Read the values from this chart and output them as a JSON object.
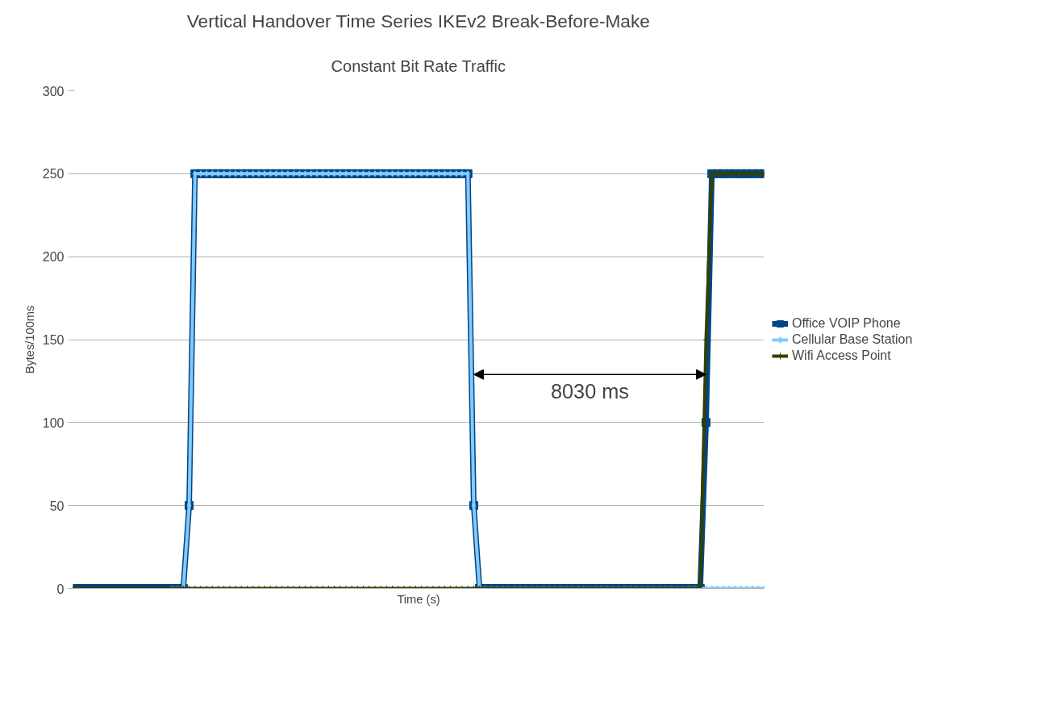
{
  "chart_data": {
    "type": "line",
    "title": "Vertical Handover Time Series IKEv2 Break-Before-Make",
    "subtitle": "Constant Bit Rate Traffic",
    "xlabel": "Time (s)",
    "ylabel": "Bytes/100ms",
    "categories": [
      null,
      null,
      null,
      null,
      null,
      null,
      null,
      null,
      null,
      null,
      null,
      null,
      null,
      null,
      null,
      null,
      null,
      null,
      null,
      null,
      null,
      null,
      null,
      null,
      null,
      null,
      null,
      null,
      null,
      null,
      null,
      null,
      null,
      null,
      null,
      null,
      null,
      null,
      null,
      null,
      null,
      null,
      null,
      null,
      null,
      null,
      null,
      null,
      null,
      null,
      null,
      null,
      null,
      null,
      null,
      null,
      null,
      null,
      null,
      null,
      null,
      null,
      null,
      null,
      null,
      null,
      null,
      null,
      null,
      null,
      null,
      null,
      null,
      null,
      null,
      null,
      null,
      null,
      null,
      null,
      null,
      null,
      null,
      null,
      null,
      null,
      null,
      null,
      null,
      null,
      null,
      null,
      null,
      null,
      null,
      null,
      null,
      null,
      null,
      null,
      null,
      null,
      null,
      null,
      null,
      null,
      null,
      null,
      null,
      null,
      null,
      null,
      null,
      null,
      null,
      null,
      null,
      null,
      null,
      null
    ],
    "series": [
      {
        "name": "Office VOIP Phone",
        "color": "#004586",
        "marker": "square",
        "values": [
          0,
          0,
          0,
          0,
          0,
          0,
          0,
          0,
          0,
          0,
          0,
          0,
          0,
          0,
          0,
          0,
          0,
          0,
          0,
          0,
          50,
          250,
          250,
          250,
          250,
          250,
          250,
          250,
          250,
          250,
          250,
          250,
          250,
          250,
          250,
          250,
          250,
          250,
          250,
          250,
          250,
          250,
          250,
          250,
          250,
          250,
          250,
          250,
          250,
          250,
          250,
          250,
          250,
          250,
          250,
          250,
          250,
          250,
          250,
          250,
          250,
          250,
          250,
          250,
          250,
          250,
          250,
          250,
          250,
          50,
          0,
          0,
          0,
          0,
          0,
          0,
          0,
          0,
          0,
          0,
          0,
          0,
          0,
          0,
          0,
          0,
          0,
          0,
          0,
          0,
          0,
          0,
          0,
          0,
          0,
          0,
          0,
          0,
          0,
          0,
          0,
          0,
          0,
          0,
          0,
          0,
          0,
          0,
          0,
          100,
          250,
          250,
          250,
          250,
          250,
          250,
          250,
          250,
          250,
          250
        ]
      },
      {
        "name": "Cellular Base Station",
        "color": "#83caff",
        "marker": "diamond",
        "values": [
          null,
          null,
          null,
          null,
          null,
          null,
          null,
          null,
          null,
          null,
          null,
          null,
          null,
          null,
          null,
          null,
          null,
          0,
          0,
          0,
          50,
          250,
          250,
          250,
          250,
          250,
          250,
          250,
          250,
          250,
          250,
          250,
          250,
          250,
          250,
          250,
          250,
          250,
          250,
          250,
          250,
          250,
          250,
          250,
          250,
          250,
          250,
          250,
          250,
          250,
          250,
          250,
          250,
          250,
          250,
          250,
          250,
          250,
          250,
          250,
          250,
          250,
          250,
          250,
          250,
          250,
          250,
          250,
          250,
          50,
          0,
          0,
          0,
          0,
          0,
          0,
          0,
          0,
          0,
          0,
          0,
          0,
          0,
          0,
          0,
          0,
          0,
          0,
          0,
          0,
          0,
          0,
          0,
          0,
          0,
          0,
          0,
          0,
          0,
          0,
          0,
          0,
          0,
          0,
          0,
          0,
          0,
          0,
          0,
          0,
          0,
          0,
          0,
          0,
          0,
          0,
          0,
          0,
          0,
          0
        ]
      },
      {
        "name": "Wifi Access Point",
        "color": "#314004",
        "marker": "cross",
        "values": [
          0,
          0,
          0,
          0,
          0,
          0,
          0,
          0,
          0,
          0,
          0,
          0,
          0,
          0,
          0,
          0,
          0,
          0,
          0,
          0,
          0,
          0,
          0,
          0,
          0,
          0,
          0,
          0,
          0,
          0,
          0,
          0,
          0,
          0,
          0,
          0,
          0,
          0,
          0,
          0,
          0,
          0,
          0,
          0,
          0,
          0,
          0,
          0,
          0,
          0,
          0,
          0,
          0,
          0,
          0,
          0,
          0,
          0,
          0,
          0,
          0,
          0,
          0,
          0,
          0,
          0,
          0,
          0,
          0,
          0,
          0,
          0,
          0,
          0,
          0,
          0,
          0,
          0,
          0,
          0,
          0,
          0,
          0,
          0,
          0,
          0,
          0,
          0,
          0,
          0,
          0,
          0,
          0,
          0,
          0,
          0,
          0,
          0,
          0,
          0,
          0,
          0,
          0,
          0,
          0,
          0,
          0,
          0,
          0,
          150,
          250,
          250,
          250,
          250,
          250,
          250,
          250,
          250,
          250,
          250
        ]
      }
    ],
    "ylim": [
      0,
      300
    ],
    "yticks": [
      0,
      50,
      100,
      150,
      200,
      250,
      300
    ],
    "grid": "y",
    "legend": "right",
    "tick_labels": "y",
    "annotations": [
      "8030 ms"
    ]
  }
}
